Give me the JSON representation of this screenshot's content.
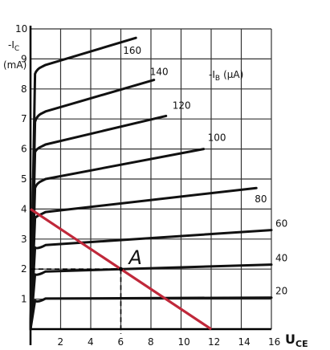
{
  "chart_data": {
    "type": "line",
    "xlim": [
      0,
      16
    ],
    "ylim": [
      0,
      10
    ],
    "x_ticks": [
      "2",
      "4",
      "6",
      "8",
      "10",
      "12",
      "14",
      "16"
    ],
    "y_ticks": [
      "1",
      "2",
      "3",
      "4",
      "5",
      "6",
      "7",
      "8",
      "9",
      "10"
    ],
    "y_axis_title": [
      "-I",
      "C",
      "(mA)"
    ],
    "x_axis_title": [
      "U",
      "CE"
    ],
    "family_label": "-I",
    "family_label_sub": "B",
    "family_label_unit": "(μA)",
    "grid": true,
    "series": [
      {
        "name": "20",
        "x": [
          0,
          0.3,
          1,
          16
        ],
        "y": [
          0,
          0.95,
          1.02,
          1.05
        ]
      },
      {
        "name": "40",
        "x": [
          0,
          0.3,
          1,
          16
        ],
        "y": [
          0,
          1.82,
          1.92,
          2.15
        ]
      },
      {
        "name": "60",
        "x": [
          0,
          0.3,
          1,
          16
        ],
        "y": [
          0,
          2.72,
          2.8,
          3.3
        ]
      },
      {
        "name": "80",
        "x": [
          0,
          0.3,
          1,
          15
        ],
        "y": [
          0,
          3.7,
          3.9,
          4.7
        ]
      },
      {
        "name": "100",
        "x": [
          0,
          0.3,
          1,
          11.5
        ],
        "y": [
          0,
          4.7,
          5.0,
          6.0
        ]
      },
      {
        "name": "120",
        "x": [
          0,
          0.3,
          1,
          9
        ],
        "y": [
          0,
          5.9,
          6.15,
          7.1
        ]
      },
      {
        "name": "140",
        "x": [
          0,
          0.3,
          1,
          8.2
        ],
        "y": [
          0,
          6.9,
          7.25,
          8.3
        ]
      },
      {
        "name": "160",
        "x": [
          0,
          0.3,
          1,
          7
        ],
        "y": [
          0,
          8.5,
          8.8,
          9.7
        ]
      }
    ],
    "load_line": {
      "x": [
        0,
        12
      ],
      "y": [
        4,
        0
      ],
      "color": "#c0283a"
    },
    "operating_point": {
      "label": "A",
      "x": 6,
      "y": 2
    }
  }
}
